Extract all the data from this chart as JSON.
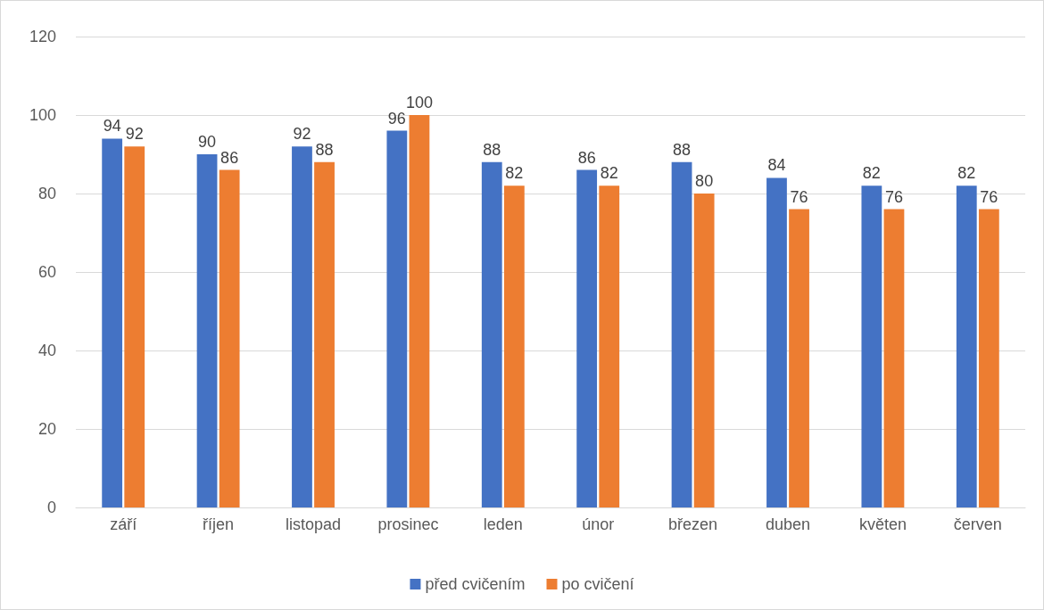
{
  "chart_data": {
    "type": "bar",
    "categories": [
      "září",
      "říjen",
      "listopad",
      "prosinec",
      "leden",
      "únor",
      "březen",
      "duben",
      "květen",
      "červen"
    ],
    "series": [
      {
        "name": "před cvičením",
        "color": "#4472c4",
        "values": [
          94,
          90,
          92,
          96,
          88,
          86,
          88,
          84,
          82,
          82
        ]
      },
      {
        "name": "po cvičení",
        "color": "#ed7d31",
        "values": [
          92,
          86,
          88,
          100,
          82,
          82,
          80,
          76,
          76,
          76
        ]
      }
    ],
    "ylim": [
      0,
      120
    ],
    "yticks": [
      0,
      20,
      40,
      60,
      80,
      100,
      120
    ],
    "grid": "y",
    "legend": "bottom",
    "data_labels": true
  }
}
